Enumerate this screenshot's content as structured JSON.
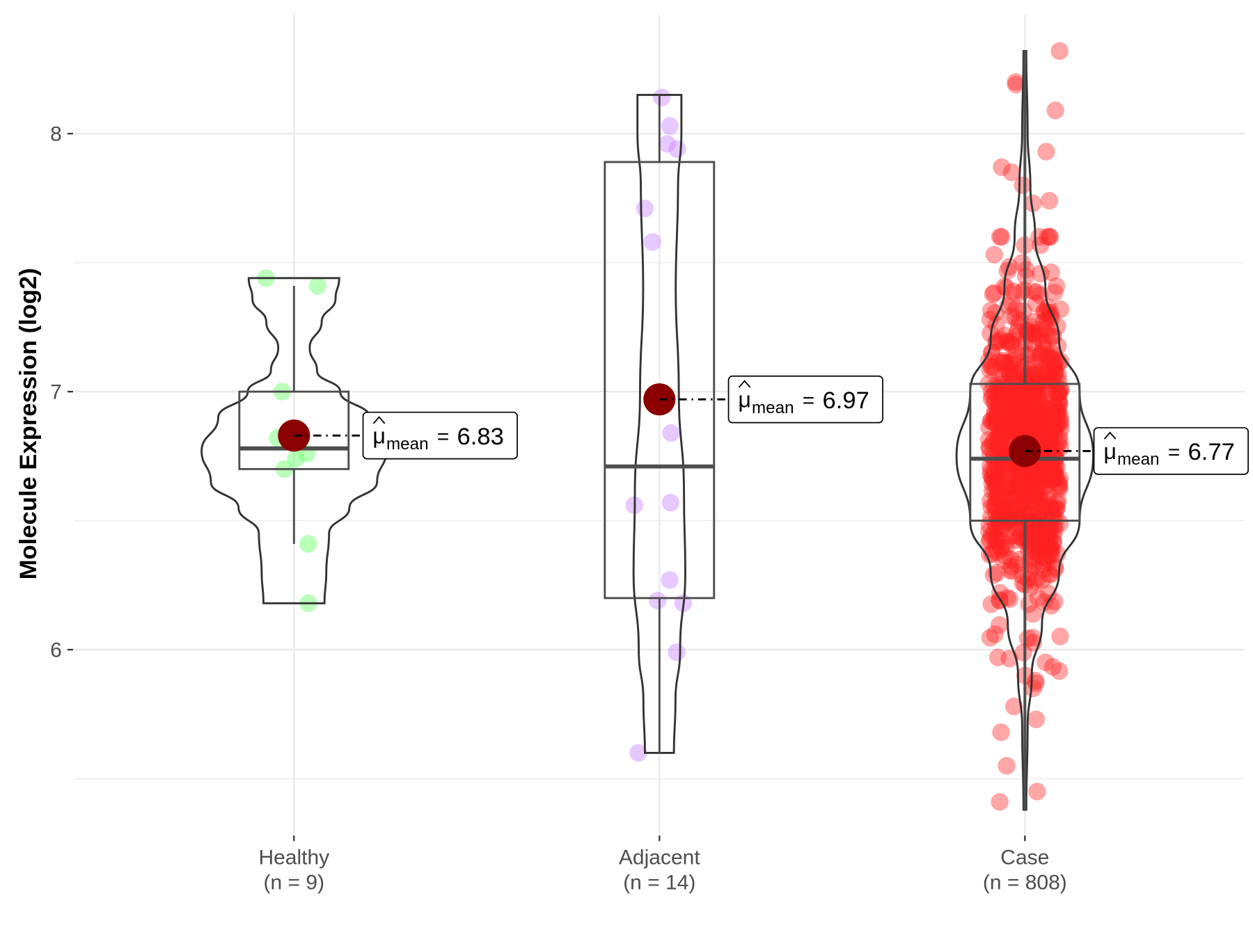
{
  "chart_data": {
    "type": "violin-box-jitter",
    "title": "",
    "xlabel": "",
    "ylabel": "Molecule Expression (log2)",
    "ylim": [
      5.3,
      8.45
    ],
    "yticks": [
      6,
      7,
      8
    ],
    "grid": true,
    "groups": [
      {
        "name": "Healthy",
        "n_label": "(n = 9)",
        "n": 9,
        "color": "#66ff66",
        "mean": 6.83,
        "mean_label": "6.83",
        "box": {
          "q1": 6.7,
          "median": 6.78,
          "q3": 7.0,
          "whisker_low": 6.41,
          "whisker_high": 7.41
        },
        "violin": [
          [
            6.18,
            0.33
          ],
          [
            6.3,
            0.35
          ],
          [
            6.45,
            0.38
          ],
          [
            6.55,
            0.6
          ],
          [
            6.65,
            0.9
          ],
          [
            6.77,
            1.0
          ],
          [
            6.9,
            0.82
          ],
          [
            7.0,
            0.5
          ],
          [
            7.08,
            0.25
          ],
          [
            7.17,
            0.17
          ],
          [
            7.27,
            0.3
          ],
          [
            7.36,
            0.45
          ],
          [
            7.44,
            0.49
          ]
        ],
        "violin_halfwidth_scale": 1.0,
        "points": [
          7.44,
          7.41,
          7.0,
          6.82,
          6.76,
          6.74,
          6.7,
          6.41,
          6.18
        ]
      },
      {
        "name": "Adjacent",
        "n_label": "(n = 14)",
        "n": 14,
        "color": "#cc88ff",
        "mean": 6.97,
        "mean_label": "6.97",
        "box": {
          "q1": 6.2,
          "median": 6.71,
          "q3": 7.89,
          "whisker_low": 5.6,
          "whisker_high": 8.15
        },
        "violin": [
          [
            5.6,
            0.56
          ],
          [
            5.8,
            0.62
          ],
          [
            6.0,
            0.8
          ],
          [
            6.3,
            1.0
          ],
          [
            6.6,
            0.95
          ],
          [
            7.0,
            0.75
          ],
          [
            7.4,
            0.63
          ],
          [
            7.8,
            0.72
          ],
          [
            8.0,
            0.85
          ],
          [
            8.15,
            0.85
          ]
        ],
        "violin_halfwidth_scale": 0.28,
        "points": [
          8.14,
          8.03,
          7.96,
          7.94,
          7.71,
          7.58,
          6.84,
          6.57,
          6.56,
          6.27,
          6.19,
          6.18,
          5.99,
          5.6
        ]
      },
      {
        "name": "Case",
        "n_label": "(n = 808)",
        "n": 808,
        "color": "#ff2020",
        "mean": 6.77,
        "mean_label": "6.77",
        "box": {
          "q1": 6.5,
          "median": 6.74,
          "q3": 7.03,
          "whisker_low": 5.38,
          "whisker_high": 8.32
        },
        "violin": [
          [
            5.38,
            0.02
          ],
          [
            5.7,
            0.04
          ],
          [
            5.9,
            0.1
          ],
          [
            6.1,
            0.25
          ],
          [
            6.3,
            0.5
          ],
          [
            6.5,
            0.8
          ],
          [
            6.75,
            1.0
          ],
          [
            7.0,
            0.8
          ],
          [
            7.2,
            0.5
          ],
          [
            7.4,
            0.3
          ],
          [
            7.6,
            0.15
          ],
          [
            7.8,
            0.08
          ],
          [
            8.0,
            0.04
          ],
          [
            8.32,
            0.02
          ]
        ],
        "violin_halfwidth_scale": 0.74,
        "points": [
          8.32,
          8.2,
          8.19,
          8.09,
          7.93,
          7.87,
          7.85,
          7.8,
          7.74,
          7.73,
          7.6,
          5.88,
          5.87,
          5.85,
          5.78,
          5.73,
          5.68,
          5.55,
          5.45,
          5.41
        ],
        "points_sd": 0.3
      }
    ],
    "mean_symbol": "μ",
    "mean_subscript": "mean",
    "mean_equals": "="
  }
}
